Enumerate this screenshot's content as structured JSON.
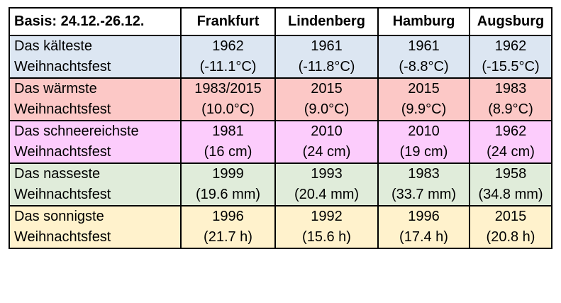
{
  "table": {
    "corner": "Basis: 24.12.-26.12.",
    "columns": [
      "Frankfurt",
      "Lindenberg",
      "Hamburg",
      "Augsburg"
    ],
    "row_colors": [
      "#dce6f2",
      "#fcc8c6",
      "#fcccfc",
      "#e0ecda",
      "#fff2cc"
    ],
    "rows": [
      {
        "label_1": "Das kälteste",
        "label_2": "Weihnachtsfest",
        "cells": [
          {
            "year": "1962",
            "value": "(-11.1°C)"
          },
          {
            "year": "1961",
            "value": "(-11.8°C)"
          },
          {
            "year": "1961",
            "value": "(-8.8°C)"
          },
          {
            "year": "1962",
            "value": "(-15.5°C)"
          }
        ]
      },
      {
        "label_1": "Das wärmste",
        "label_2": "Weihnachtsfest",
        "cells": [
          {
            "year": "1983/2015",
            "value": "(10.0°C)"
          },
          {
            "year": "2015",
            "value": "(9.0°C)"
          },
          {
            "year": "2015",
            "value": "(9.9°C)"
          },
          {
            "year": "1983",
            "value": "(8.9°C)"
          }
        ]
      },
      {
        "label_1": "Das schneereichste",
        "label_2": "Weihnachtsfest",
        "cells": [
          {
            "year": "1981",
            "value": "(16 cm)"
          },
          {
            "year": "2010",
            "value": "(24 cm)"
          },
          {
            "year": "2010",
            "value": "(19 cm)"
          },
          {
            "year": "1962",
            "value": "(24 cm)"
          }
        ]
      },
      {
        "label_1": "Das nasseste",
        "label_2": "Weihnachtsfest",
        "cells": [
          {
            "year": "1999",
            "value": "(19.6 mm)"
          },
          {
            "year": "1993",
            "value": "(20.4 mm)"
          },
          {
            "year": "1983",
            "value": "(33.7 mm)"
          },
          {
            "year": "1958",
            "value": "(34.8 mm)"
          }
        ]
      },
      {
        "label_1": "Das sonnigste",
        "label_2": "Weihnachtsfest",
        "cells": [
          {
            "year": "1996",
            "value": "(21.7 h)"
          },
          {
            "year": "1992",
            "value": "(15.6 h)"
          },
          {
            "year": "1996",
            "value": "(17.4 h)"
          },
          {
            "year": "2015",
            "value": "(20.8 h)"
          }
        ]
      }
    ]
  }
}
